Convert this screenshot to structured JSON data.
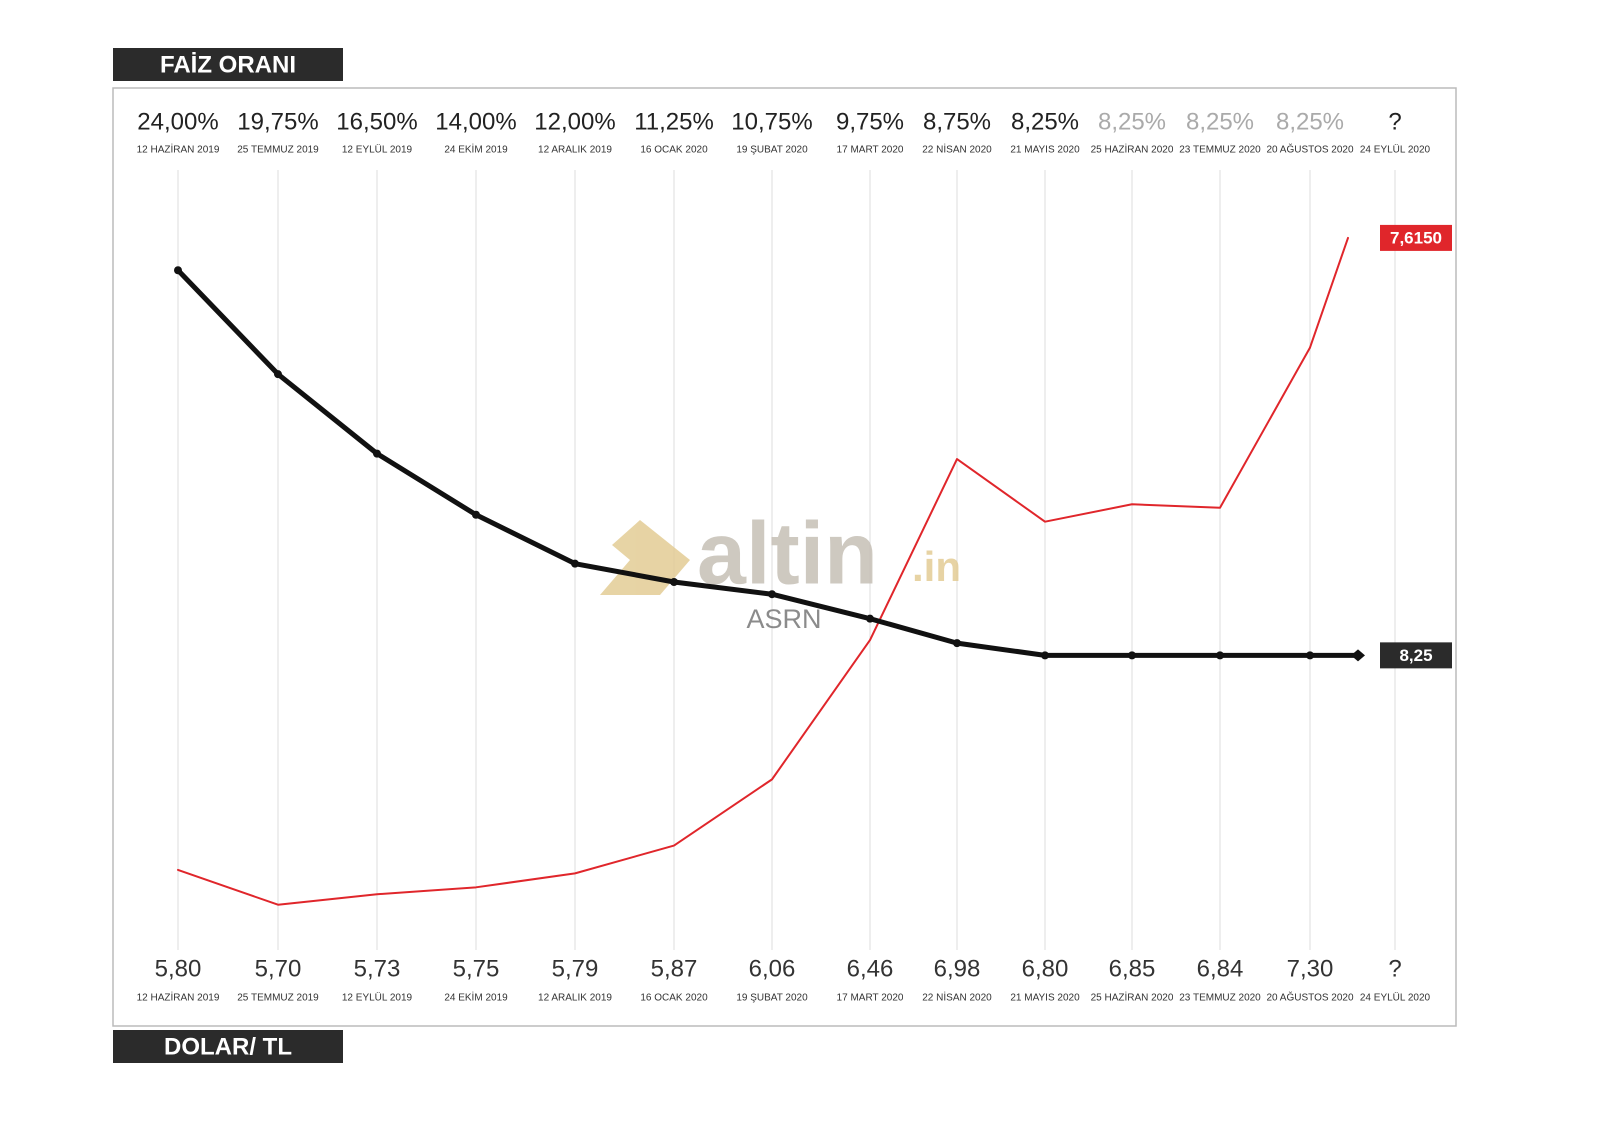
{
  "chart_data": {
    "type": "line",
    "categories": [
      "12 HAZİRAN 2019",
      "25 TEMMUZ 2019",
      "12 EYLÜL 2019",
      "24 EKİM 2019",
      "12 ARALIK 2019",
      "16 OCAK 2020",
      "19 ŞUBAT 2020",
      "17 MART 2020",
      "22 NİSAN 2020",
      "21 MAYIS 2020",
      "25 HAZİRAN 2020",
      "23 TEMMUZ 2020",
      "20 AĞUSTOS 2020",
      "24 EYLÜL 2020"
    ],
    "series": [
      {
        "name": "FAİZ ORANI",
        "color": "#111111",
        "axis": "y",
        "values": [
          24,
          19.75,
          16.5,
          14,
          12,
          11.25,
          10.75,
          9.75,
          8.75,
          8.25,
          8.25,
          8.25,
          8.25,
          null
        ],
        "value_labels": [
          "24,00%",
          "19,75%",
          "16,50%",
          "14,00%",
          "12,00%",
          "11,25%",
          "10,75%",
          "9,75%",
          "8,75%",
          "8,25%",
          "8,25%",
          "8,25%",
          "8,25%",
          "?"
        ],
        "label_colors": [
          "#222222",
          "#222222",
          "#222222",
          "#222222",
          "#222222",
          "#222222",
          "#222222",
          "#222222",
          "#222222",
          "#222222",
          "#aaaaaa",
          "#aaaaaa",
          "#aaaaaa",
          "#222222"
        ],
        "end_value": 8.25,
        "end_label": "8,25"
      },
      {
        "name": "DOLAR/ TL",
        "color": "#e0262b",
        "axis": "y2",
        "values": [
          5.8,
          5.7,
          5.73,
          5.75,
          5.79,
          5.87,
          6.06,
          6.46,
          6.98,
          6.8,
          6.85,
          6.84,
          7.3,
          null
        ],
        "value_labels": [
          "5,80",
          "5,70",
          "5,73",
          "5,75",
          "5,79",
          "5,87",
          "6,06",
          "6,46",
          "6,98",
          "6,80",
          "6,85",
          "6,84",
          "7,30",
          "?"
        ],
        "end_value": 7.615,
        "end_label": "7,6150"
      }
    ],
    "ylim": [
      -3.8,
      28.1
    ],
    "y2lim": [
      5.57,
      7.81
    ],
    "grid": true,
    "watermark": {
      "text": "altin",
      "suffix": ".in",
      "sub": "ASRN"
    }
  }
}
